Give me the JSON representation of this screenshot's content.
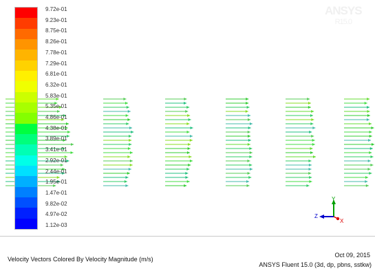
{
  "legend": {
    "labels": [
      "9.72e-01",
      "9.23e-01",
      "8.75e-01",
      "8.26e-01",
      "7.78e-01",
      "7.29e-01",
      "6.81e-01",
      "6.32e-01",
      "5.83e-01",
      "5.35e-01",
      "4.86e-01",
      "4.38e-01",
      "3.89e-01",
      "3.41e-01",
      "2.92e-01",
      "2.44e-01",
      "1.95e-01",
      "1.47e-01",
      "9.82e-02",
      "4.97e-02",
      "1.12e-03"
    ],
    "colors": [
      "#ff0000",
      "#ff3c00",
      "#ff6a00",
      "#ff9400",
      "#ffb400",
      "#ffd200",
      "#fff000",
      "#f0ff00",
      "#ccff00",
      "#a8ff00",
      "#84ff00",
      "#00ff40",
      "#00ff7c",
      "#00ffb4",
      "#00ffe8",
      "#00e0ff",
      "#00b0ff",
      "#0080ff",
      "#0050ff",
      "#0020ff",
      "#0000ff"
    ]
  },
  "watermark": {
    "line1": "ANSYS",
    "line2": "R15.0"
  },
  "axes": {
    "y": "Y",
    "z": "Z",
    "x": "X"
  },
  "footer": {
    "caption": "Velocity Vectors Colored By Velocity Magnitude (m/s)",
    "date": "Oct 09, 2015",
    "version": "ANSYS Fluent 15.0 (3d, dp, pbns, sstkw)"
  }
}
